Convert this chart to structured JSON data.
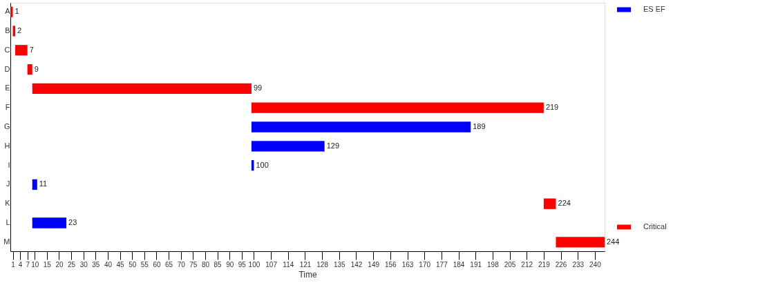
{
  "chart_data": {
    "type": "bar",
    "orientation": "horizontal",
    "xlabel": "Time",
    "categories": [
      "A",
      "B",
      "C",
      "D",
      "E",
      "F",
      "G",
      "H",
      "I",
      "J",
      "K",
      "L",
      "M"
    ],
    "series": [
      {
        "name": "ES EF",
        "color": "#0000ff",
        "base": [
          null,
          null,
          null,
          null,
          null,
          null,
          99,
          99,
          99,
          9,
          null,
          9,
          null
        ],
        "values": [
          null,
          null,
          null,
          null,
          null,
          null,
          90,
          30,
          1,
          2,
          null,
          14,
          null
        ]
      },
      {
        "name": "Critical",
        "color": "#ff0000",
        "base": [
          0,
          1,
          2,
          7,
          9,
          99,
          null,
          null,
          null,
          null,
          219,
          null,
          224
        ],
        "values": [
          1,
          1,
          5,
          2,
          90,
          120,
          null,
          null,
          null,
          null,
          5,
          null,
          20
        ]
      }
    ],
    "value_labels": [
      "1",
      "2",
      "7",
      "9",
      "99",
      "219",
      "189",
      "129",
      "100",
      "11",
      "224",
      "23",
      "244"
    ],
    "xlim": [
      0,
      244
    ],
    "xticks": [
      1,
      4,
      7,
      10,
      15,
      20,
      25,
      30,
      35,
      40,
      45,
      50,
      55,
      60,
      65,
      70,
      75,
      80,
      85,
      90,
      95,
      100,
      107,
      114,
      121,
      128,
      135,
      142,
      149,
      156,
      163,
      170,
      177,
      184,
      191,
      198,
      205,
      212,
      219,
      226,
      233,
      240
    ],
    "legend": "right",
    "grid": false
  }
}
